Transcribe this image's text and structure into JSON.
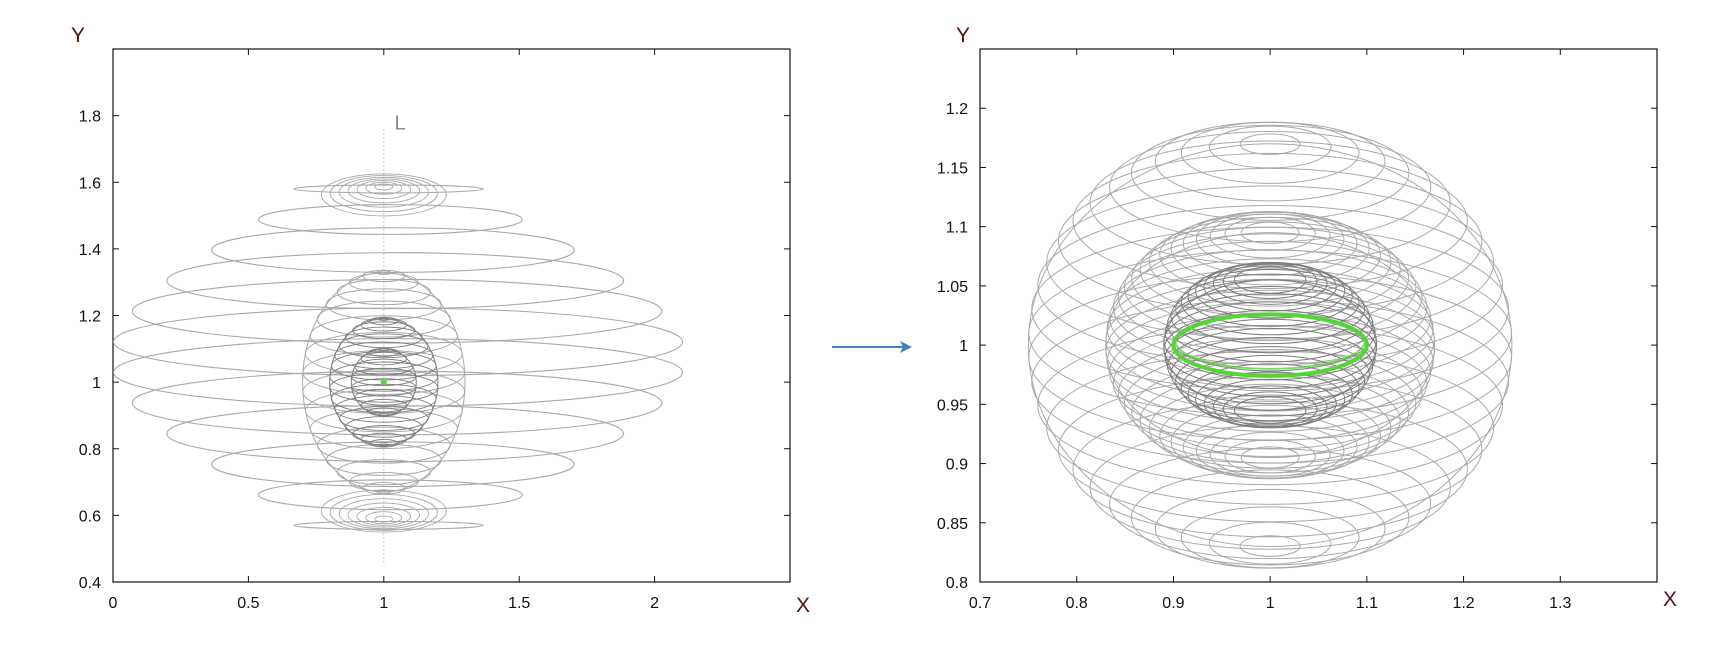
{
  "colors": {
    "orbit": "#a9a9a9",
    "orbit_dark": "#7d7d7d",
    "highlight": "#55d43a",
    "arrow": "#3f7fc2",
    "axis_letter": "#5a1010",
    "frame": "#111111"
  },
  "arrow": {
    "direction": "right"
  },
  "chart_data": [
    {
      "type": "line",
      "title": "",
      "xlabel": "X",
      "ylabel": "Y",
      "xlim": [
        0,
        2.5
      ],
      "ylim": [
        0.4,
        2.0
      ],
      "xticks": [
        0,
        0.5,
        1,
        1.5,
        2
      ],
      "xtick_labels": [
        "0",
        "0.5",
        "1",
        "1.5",
        "2"
      ],
      "yticks": [
        0.4,
        0.6,
        0.8,
        1,
        1.2,
        1.4,
        1.6,
        1.8
      ],
      "ytick_labels": [
        "0.4",
        "0.6",
        "0.8",
        "1",
        "1.2",
        "1.4",
        "1.6",
        "1.8"
      ],
      "grid": false,
      "annotations": [
        {
          "text": "L",
          "x": 1.06,
          "y": 1.8
        }
      ],
      "center": [
        1,
        1
      ],
      "axis_line": {
        "x": 1,
        "y_range": [
          0.45,
          1.76
        ]
      },
      "series": [
        {
          "role": "outer-spiral",
          "center": [
            1,
            1
          ],
          "a_range": [
            0.35,
            1.06
          ],
          "y_range": [
            0.57,
            1.58
          ],
          "n": 12
        },
        {
          "role": "middle-shell",
          "center": [
            1,
            1
          ],
          "radius_x": 0.3,
          "radius_y": 0.33,
          "n": 18
        },
        {
          "role": "inner-sphere",
          "center": [
            1,
            1
          ],
          "radius_x": 0.2,
          "radius_y": 0.19,
          "n": 18
        },
        {
          "role": "core-sphere",
          "center": [
            1,
            1
          ],
          "radius_x": 0.12,
          "radius_y": 0.1,
          "n": 10
        }
      ],
      "highlight_point": [
        1,
        1
      ]
    },
    {
      "type": "line",
      "title": "",
      "xlabel": "X",
      "ylabel": "Y",
      "xlim": [
        0.7,
        1.4
      ],
      "ylim": [
        0.8,
        1.25
      ],
      "xticks": [
        0.7,
        0.8,
        0.9,
        1,
        1.1,
        1.2,
        1.3
      ],
      "xtick_labels": [
        "0.7",
        "0.8",
        "0.9",
        "1",
        "1.1",
        "1.2",
        "1.3"
      ],
      "yticks": [
        0.8,
        0.85,
        0.9,
        0.95,
        1,
        1.05,
        1.1,
        1.15,
        1.2
      ],
      "ytick_labels": [
        "0.8",
        "0.85",
        "0.9",
        "0.95",
        "1",
        "1.05",
        "1.1",
        "1.15",
        "1.2"
      ],
      "grid": false,
      "center": [
        1,
        1
      ],
      "series": [
        {
          "role": "outer-torus",
          "center": [
            1,
            1
          ],
          "radius_x": 0.25,
          "radius_y": 0.17,
          "n": 26
        },
        {
          "role": "middle-torus",
          "center": [
            1,
            1
          ],
          "radius_x": 0.17,
          "radius_y": 0.095,
          "n": 32
        },
        {
          "role": "inner-torus",
          "center": [
            1,
            1
          ],
          "radius_x": 0.11,
          "radius_y": 0.055,
          "n": 24
        }
      ],
      "highlight_ring": {
        "center": [
          1,
          1
        ],
        "radius_x": 0.1,
        "radius_y": 0.026
      }
    }
  ]
}
